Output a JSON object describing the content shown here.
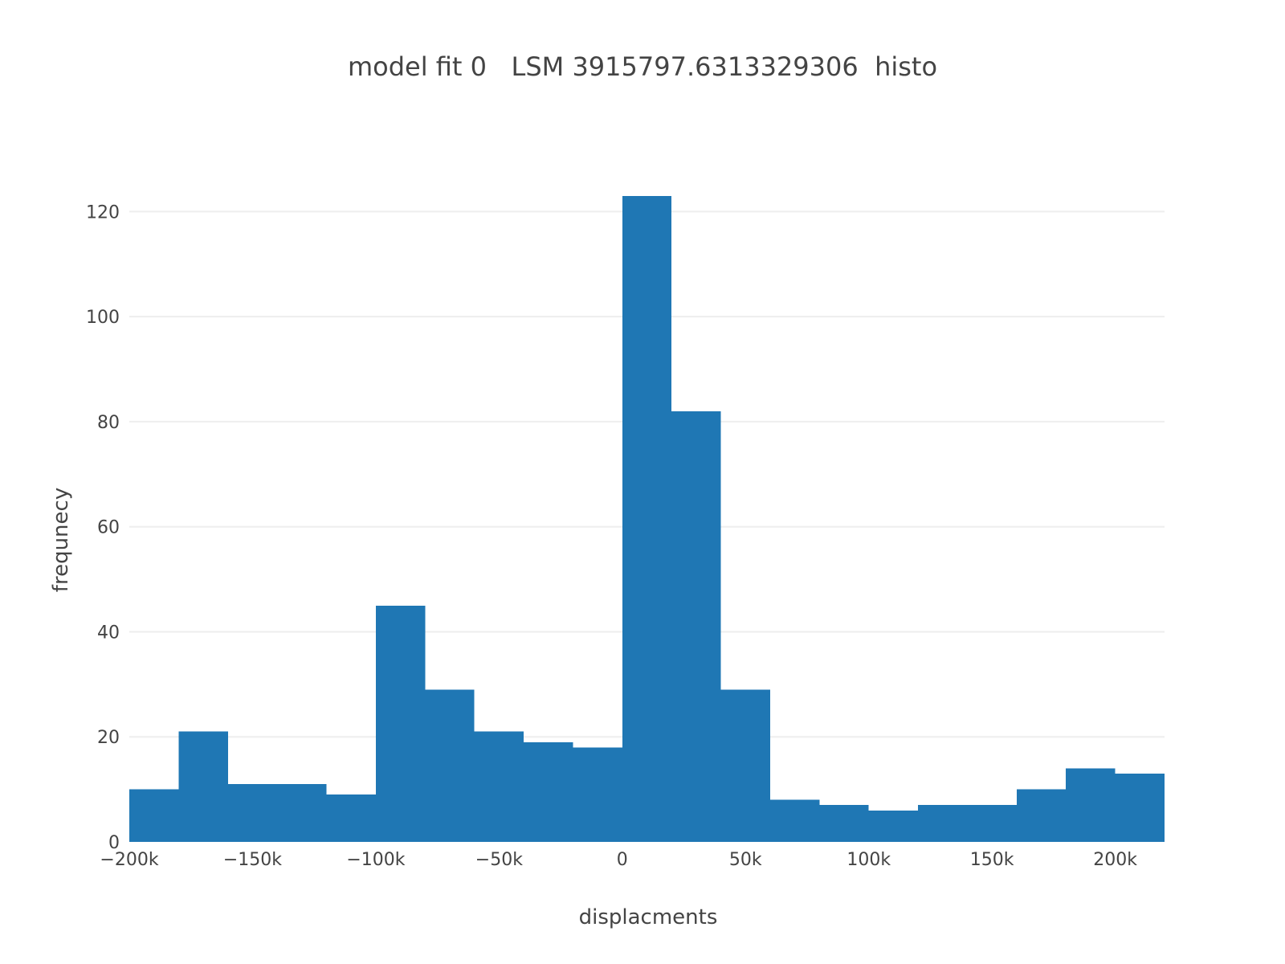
{
  "chart_data": {
    "type": "bar",
    "title": "model fit 0   LSM 3915797.6313329306  histo",
    "xlabel": "displacments",
    "ylabel": "frequnecy",
    "bar_color": "#1f77b4",
    "grid": true,
    "xlim": [
      -200000,
      220000
    ],
    "ylim": [
      0,
      130
    ],
    "bin_width": 20000,
    "bins": [
      {
        "x0": -200000,
        "x1": -180000,
        "count": 10
      },
      {
        "x0": -180000,
        "x1": -160000,
        "count": 21
      },
      {
        "x0": -160000,
        "x1": -140000,
        "count": 11
      },
      {
        "x0": -140000,
        "x1": -120000,
        "count": 11
      },
      {
        "x0": -120000,
        "x1": -100000,
        "count": 9
      },
      {
        "x0": -100000,
        "x1": -80000,
        "count": 45
      },
      {
        "x0": -80000,
        "x1": -60000,
        "count": 29
      },
      {
        "x0": -60000,
        "x1": -40000,
        "count": 21
      },
      {
        "x0": -40000,
        "x1": -20000,
        "count": 19
      },
      {
        "x0": -20000,
        "x1": 0,
        "count": 18
      },
      {
        "x0": 0,
        "x1": 20000,
        "count": 123
      },
      {
        "x0": 20000,
        "x1": 40000,
        "count": 82
      },
      {
        "x0": 40000,
        "x1": 60000,
        "count": 29
      },
      {
        "x0": 60000,
        "x1": 80000,
        "count": 8
      },
      {
        "x0": 80000,
        "x1": 100000,
        "count": 7
      },
      {
        "x0": 100000,
        "x1": 120000,
        "count": 6
      },
      {
        "x0": 120000,
        "x1": 140000,
        "count": 7
      },
      {
        "x0": 140000,
        "x1": 160000,
        "count": 7
      },
      {
        "x0": 160000,
        "x1": 180000,
        "count": 10
      },
      {
        "x0": 180000,
        "x1": 200000,
        "count": 14
      },
      {
        "x0": 200000,
        "x1": 220000,
        "count": 13
      }
    ],
    "x_ticks": [
      {
        "value": -200000,
        "label": "−200k"
      },
      {
        "value": -150000,
        "label": "−150k"
      },
      {
        "value": -100000,
        "label": "−100k"
      },
      {
        "value": -50000,
        "label": "−50k"
      },
      {
        "value": 0,
        "label": "0"
      },
      {
        "value": 50000,
        "label": "50k"
      },
      {
        "value": 100000,
        "label": "100k"
      },
      {
        "value": 150000,
        "label": "150k"
      },
      {
        "value": 200000,
        "label": "200k"
      }
    ],
    "y_ticks": [
      {
        "value": 0,
        "label": "0"
      },
      {
        "value": 20,
        "label": "20"
      },
      {
        "value": 40,
        "label": "40"
      },
      {
        "value": 60,
        "label": "60"
      },
      {
        "value": 80,
        "label": "80"
      },
      {
        "value": 100,
        "label": "100"
      },
      {
        "value": 120,
        "label": "120"
      }
    ]
  }
}
